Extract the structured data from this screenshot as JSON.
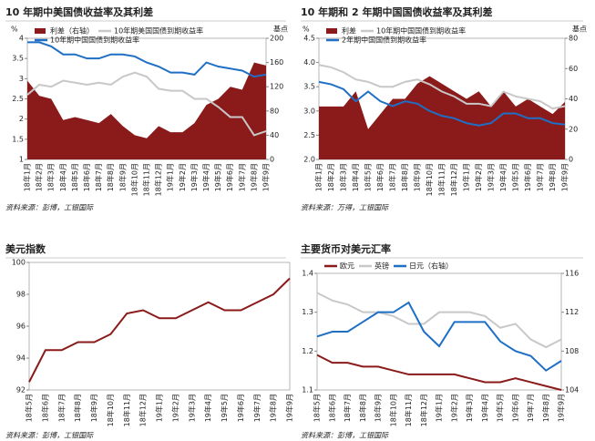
{
  "chart_data": [
    {
      "type": "line",
      "title": "10 年期中美国债收益率及其利差",
      "y_unit": "%",
      "y2_unit": "基点",
      "source": "资料来源：彭博，工银国际",
      "categories": [
        "18年1月",
        "18年2月",
        "18年3月",
        "18年4月",
        "18年5月",
        "18年6月",
        "18年7月",
        "18年8月",
        "18年9月",
        "18年10月",
        "18年11月",
        "18年12月",
        "19年1月",
        "19年2月",
        "19年3月",
        "19年4月",
        "19年5月",
        "19年6月",
        "19年7月",
        "19年8月",
        "19年9月"
      ],
      "ylim": [
        1,
        4
      ],
      "yticks": [
        1,
        1.5,
        2,
        2.5,
        3,
        3.5,
        4
      ],
      "y2lim": [
        0,
        200
      ],
      "y2ticks": [
        0,
        40,
        80,
        120,
        160,
        200
      ],
      "series": [
        {
          "name": "利差（右轴）",
          "color": "#8b1a1a",
          "axis": "y2",
          "area": true,
          "values": [
            130,
            105,
            100,
            65,
            70,
            65,
            60,
            75,
            55,
            40,
            35,
            55,
            45,
            45,
            60,
            90,
            100,
            120,
            115,
            160,
            155
          ]
        },
        {
          "name": "10年期美国国债到期收益率",
          "color": "#c8c8c8",
          "values": [
            2.6,
            2.85,
            2.8,
            2.95,
            2.9,
            2.85,
            2.9,
            2.85,
            3.05,
            3.15,
            3.05,
            2.75,
            2.7,
            2.7,
            2.5,
            2.5,
            2.3,
            2.05,
            2.05,
            1.6,
            1.7
          ]
        },
        {
          "name": "10年期中国国债到期收益率",
          "color": "#1f6fc5",
          "values": [
            3.9,
            3.9,
            3.8,
            3.6,
            3.6,
            3.5,
            3.5,
            3.6,
            3.6,
            3.55,
            3.4,
            3.3,
            3.15,
            3.15,
            3.1,
            3.4,
            3.3,
            3.25,
            3.2,
            3.05,
            3.1
          ]
        }
      ]
    },
    {
      "type": "line",
      "title": "10 年期和 2 年期中国国债收益率及其利差",
      "y_unit": "%",
      "y2_unit": "基点",
      "source": "资料来源：万得，工银国际",
      "categories": [
        "18年1月",
        "18年2月",
        "18年3月",
        "18年4月",
        "18年5月",
        "18年6月",
        "18年7月",
        "18年8月",
        "18年9月",
        "18年10月",
        "18年11月",
        "18年12月",
        "19年1月",
        "19年2月",
        "19年3月",
        "19年4月",
        "19年5月",
        "19年6月",
        "19年7月",
        "19年8月",
        "19年9月"
      ],
      "ylim": [
        2,
        4.5
      ],
      "yticks": [
        {
          "value": 2,
          "label": "2.0"
        },
        2.5,
        {
          "value": 3,
          "label": "3.0"
        },
        3.5,
        {
          "value": 4,
          "label": "4.0"
        },
        4.5
      ],
      "y2lim": [
        0,
        80
      ],
      "y2ticks": [
        0,
        20,
        40,
        60,
        80
      ],
      "series": [
        {
          "name": "利差",
          "color": "#8b1a1a",
          "axis": "y2",
          "area": true,
          "values": [
            35,
            35,
            35,
            45,
            20,
            30,
            40,
            40,
            50,
            55,
            50,
            45,
            40,
            45,
            35,
            45,
            35,
            40,
            35,
            30,
            38
          ]
        },
        {
          "name": "10年期中国国债到期收益率",
          "color": "#c8c8c8",
          "values": [
            3.95,
            3.9,
            3.8,
            3.65,
            3.6,
            3.5,
            3.5,
            3.6,
            3.65,
            3.55,
            3.4,
            3.3,
            3.15,
            3.15,
            3.1,
            3.4,
            3.3,
            3.25,
            3.2,
            3.05,
            3.1
          ]
        },
        {
          "name": "2年期中国国债到期收益率",
          "color": "#1f6fc5",
          "values": [
            3.6,
            3.55,
            3.45,
            3.2,
            3.4,
            3.2,
            3.1,
            3.2,
            3.15,
            3.0,
            2.9,
            2.85,
            2.75,
            2.7,
            2.75,
            2.95,
            2.95,
            2.85,
            2.85,
            2.75,
            2.72
          ]
        }
      ]
    },
    {
      "type": "line",
      "title": "美元指数",
      "source": "资料来源：彭博，工银国际",
      "categories": [
        "18年5月",
        "18年6月",
        "18年7月",
        "18年8月",
        "18年9月",
        "18年10月",
        "18年11月",
        "18年12月",
        "19年1月",
        "19年2月",
        "19年3月",
        "19年4月",
        "19年5月",
        "19年6月",
        "19年7月",
        "19年8月",
        "19年9月"
      ],
      "ylim": [
        92,
        100
      ],
      "yticks": [
        92,
        94,
        96,
        98,
        100
      ],
      "series": [
        {
          "name": "美元指数",
          "color": "#8b1a1a",
          "values": [
            92.5,
            94.5,
            94.5,
            95,
            95,
            95.5,
            96.8,
            97,
            96.5,
            96.5,
            97,
            97.5,
            97,
            97,
            97.5,
            98,
            99
          ]
        }
      ]
    },
    {
      "type": "line",
      "title": "主要货币对美元汇率",
      "source": "资料来源：彭博，工银国际",
      "categories": [
        "18年5月",
        "18年6月",
        "18年7月",
        "18年8月",
        "18年9月",
        "18年10月",
        "18年11月",
        "18年12月",
        "19年1月",
        "19年2月",
        "19年3月",
        "19年4月",
        "19年5月",
        "19年6月",
        "19年7月",
        "19年8月",
        "19年9月"
      ],
      "ylim": [
        1.1,
        1.4
      ],
      "yticks": [
        1.1,
        1.2,
        1.3,
        1.4
      ],
      "y2lim": [
        104,
        116
      ],
      "y2ticks": [
        104,
        108,
        112,
        116
      ],
      "series": [
        {
          "name": "欧元",
          "color": "#8b1a1a",
          "values": [
            1.19,
            1.17,
            1.17,
            1.16,
            1.16,
            1.15,
            1.14,
            1.14,
            1.14,
            1.14,
            1.13,
            1.12,
            1.12,
            1.13,
            1.12,
            1.11,
            1.1
          ]
        },
        {
          "name": "英镑",
          "color": "#c8c8c8",
          "values": [
            1.35,
            1.33,
            1.32,
            1.3,
            1.3,
            1.29,
            1.27,
            1.27,
            1.3,
            1.3,
            1.3,
            1.29,
            1.26,
            1.27,
            1.23,
            1.21,
            1.23
          ]
        },
        {
          "name": "日元（右轴）",
          "color": "#1f6fc5",
          "axis": "y2",
          "values": [
            109.5,
            110,
            110,
            111,
            112,
            112,
            113,
            110,
            108.5,
            111,
            111,
            111,
            109,
            108,
            107.5,
            106,
            107
          ]
        }
      ]
    }
  ]
}
